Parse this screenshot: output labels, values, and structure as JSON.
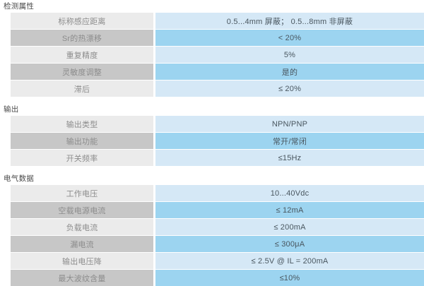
{
  "colors": {
    "row_light_gray": "#ebebeb",
    "row_dark_gray": "#c7c7c7",
    "row_light_blue": "#d5e8f6",
    "row_dark_blue": "#9cd4f0",
    "title_text": "#4a4a4a",
    "label_text": "#8c8c8c",
    "value_text": "#49565f",
    "page_bg": "#ffffff"
  },
  "sections": [
    {
      "title": "检测属性",
      "rows": [
        {
          "label": "标称感应距离",
          "value": "0.5...4mm 屏蔽；  0.5...8mm 非屏蔽"
        },
        {
          "label": "Sr的热漂移",
          "value": "< 20%"
        },
        {
          "label": "重复精度",
          "value": "5%"
        },
        {
          "label": "灵敏度调整",
          "value": "是的"
        },
        {
          "label": "滞后",
          "value": "≤ 20%"
        }
      ]
    },
    {
      "title": "输出",
      "rows": [
        {
          "label": "输出类型",
          "value": "NPN/PNP"
        },
        {
          "label": "输出功能",
          "value": "常开/常闭"
        },
        {
          "label": "开关频率",
          "value": "≤15Hz"
        }
      ]
    },
    {
      "title": "电气数据",
      "rows": [
        {
          "label": "工作电压",
          "value": "10...40Vdc"
        },
        {
          "label": "空载电源电流",
          "value": "≤ 12mA"
        },
        {
          "label": "负载电流",
          "value": "≤ 200mA"
        },
        {
          "label": "漏电流",
          "value": "≤ 300μA"
        },
        {
          "label": "输出电压降",
          "value": "≤ 2.5V @ IL = 200mA"
        },
        {
          "label": "最大波纹含量",
          "value": "≤10%"
        }
      ]
    }
  ]
}
